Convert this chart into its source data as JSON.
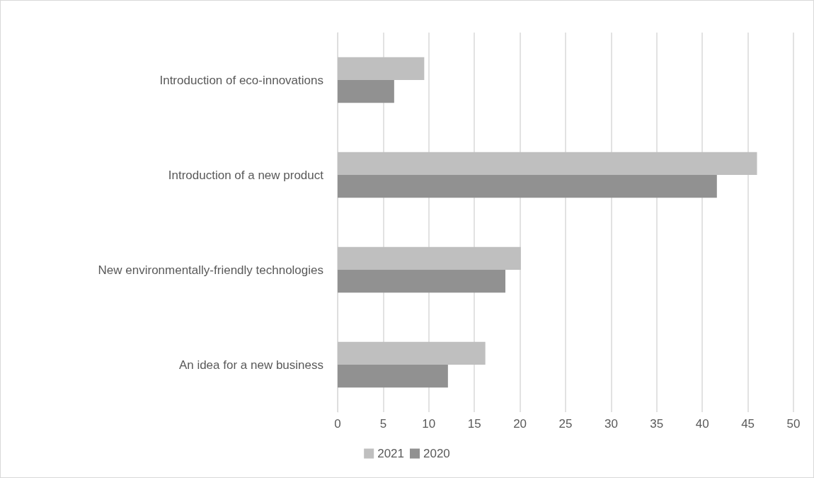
{
  "chart_data": {
    "type": "bar",
    "orientation": "horizontal",
    "categories": [
      "Introduction of eco-innovations",
      "Introduction of a new product",
      "New environmentally-friendly technologies",
      "An idea for a new business"
    ],
    "series": [
      {
        "name": "2021",
        "color": "#bfbfbf",
        "values": [
          9.5,
          46.0,
          20.1,
          16.2
        ]
      },
      {
        "name": "2020",
        "color": "#919191",
        "values": [
          6.2,
          41.6,
          18.4,
          12.1
        ]
      }
    ],
    "xlim": [
      0,
      50
    ],
    "xticks": [
      0,
      5,
      10,
      15,
      20,
      25,
      30,
      35,
      40,
      45,
      50
    ],
    "grid": "x",
    "legend": "bottom"
  }
}
